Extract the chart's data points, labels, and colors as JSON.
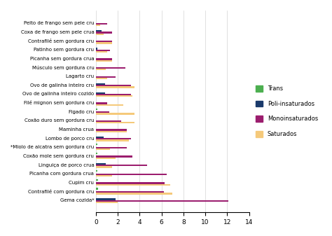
{
  "categories": [
    "Gema cozida*",
    "Contrafilé com gordura cru",
    "Cupim cru",
    "Picanha com gordura crua",
    "Linguiça de porco crua",
    "Coxão mole sem gordura cru",
    "*Miolo de alcatra sem gordura cru",
    "Lombo de porco cru",
    "Maminha crua",
    "Coxão duro sem gordura cru",
    "Figado cru",
    "Filé mignon sem gordura cru",
    "Ovo de galinha inteiro cozido",
    "Ovo de galinha inteiro cru",
    "Lagarto cru",
    "Músculo sem gordura cru",
    "Picanha sem gordura crua",
    "Patinho sem gordura cru",
    "Contrafilé sem gordura cru",
    "Coxa de frango sem pele crua",
    "Peito de frango sem pele cru"
  ],
  "trans": [
    0,
    0.2,
    0.2,
    0.1,
    0,
    0.1,
    0.1,
    0,
    0,
    0,
    0.1,
    0,
    0,
    0,
    0,
    0,
    0,
    0,
    0,
    0,
    0
  ],
  "poli": [
    1.8,
    0,
    0,
    0,
    0.9,
    0,
    0,
    0.7,
    0,
    0,
    0,
    0,
    0.8,
    0.8,
    0,
    0,
    0,
    0.1,
    0,
    0.5,
    0
  ],
  "mono": [
    12.1,
    6.2,
    6.3,
    6.5,
    4.7,
    3.3,
    2.8,
    3.2,
    2.8,
    2.3,
    1.2,
    1.0,
    3.2,
    3.2,
    1.8,
    2.7,
    1.5,
    1.3,
    1.5,
    1.5,
    1.0
  ],
  "sat": [
    2.0,
    7.0,
    6.8,
    1.5,
    1.5,
    1.8,
    1.3,
    3.0,
    2.8,
    3.5,
    3.5,
    2.5,
    3.3,
    3.5,
    1.0,
    0.9,
    1.5,
    1.0,
    1.5,
    0.7,
    0.4
  ],
  "color_trans": "#4caf50",
  "color_poli": "#1a3a6b",
  "color_mono": "#9b1d6e",
  "color_sat": "#f5c97a",
  "xlim": [
    0,
    14
  ],
  "xticks": [
    0,
    2,
    4,
    6,
    8,
    10,
    12,
    14
  ],
  "legend_labels": [
    "Trans",
    "Poli-insaturados",
    "Monoinsaturados",
    "Saturados"
  ],
  "bar_height": 0.18,
  "figsize": [
    4.74,
    3.37
  ],
  "dpi": 100
}
